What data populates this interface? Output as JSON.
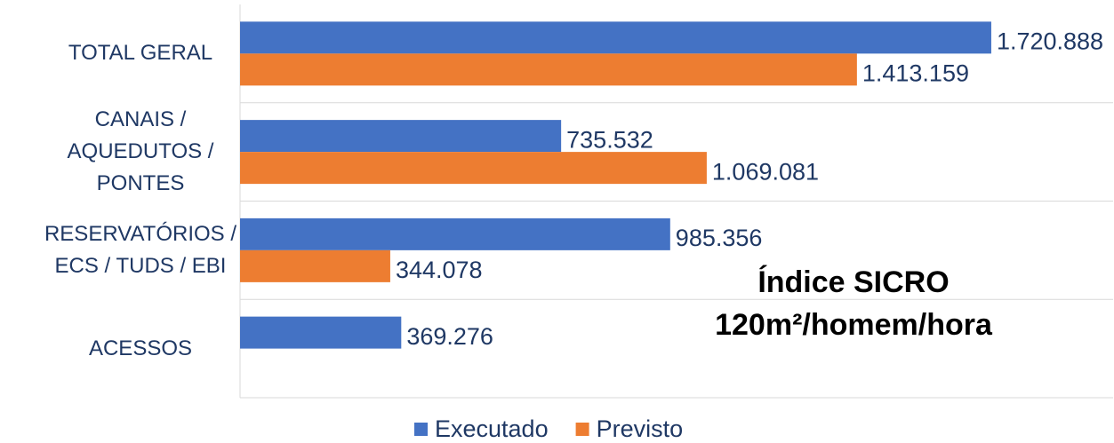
{
  "chart_data": {
    "type": "bar",
    "orientation": "horizontal",
    "categories": [
      "TOTAL GERAL",
      "CANAIS /\nAQUEDUTOS /\nPONTES",
      "RESERVATÓRIOS /\nECS / TUDS / EBI",
      "ACESSOS"
    ],
    "series": [
      {
        "name": "Executado",
        "color": "#4472c4",
        "values": [
          1720888,
          735532,
          985356,
          369276
        ],
        "value_labels": [
          "1.720.888",
          "735.532",
          "985.356",
          "369.276"
        ]
      },
      {
        "name": "Previsto",
        "color": "#ed7d31",
        "values": [
          1413159,
          1069081,
          344078,
          null
        ],
        "value_labels": [
          "1.413.159",
          "1.069.081",
          "344.078",
          null
        ]
      }
    ],
    "xlim": [
      0,
      2000000
    ],
    "annotations": [
      "Índice SICRO",
      "120m²/homem/hora"
    ],
    "legend": "bottom"
  }
}
